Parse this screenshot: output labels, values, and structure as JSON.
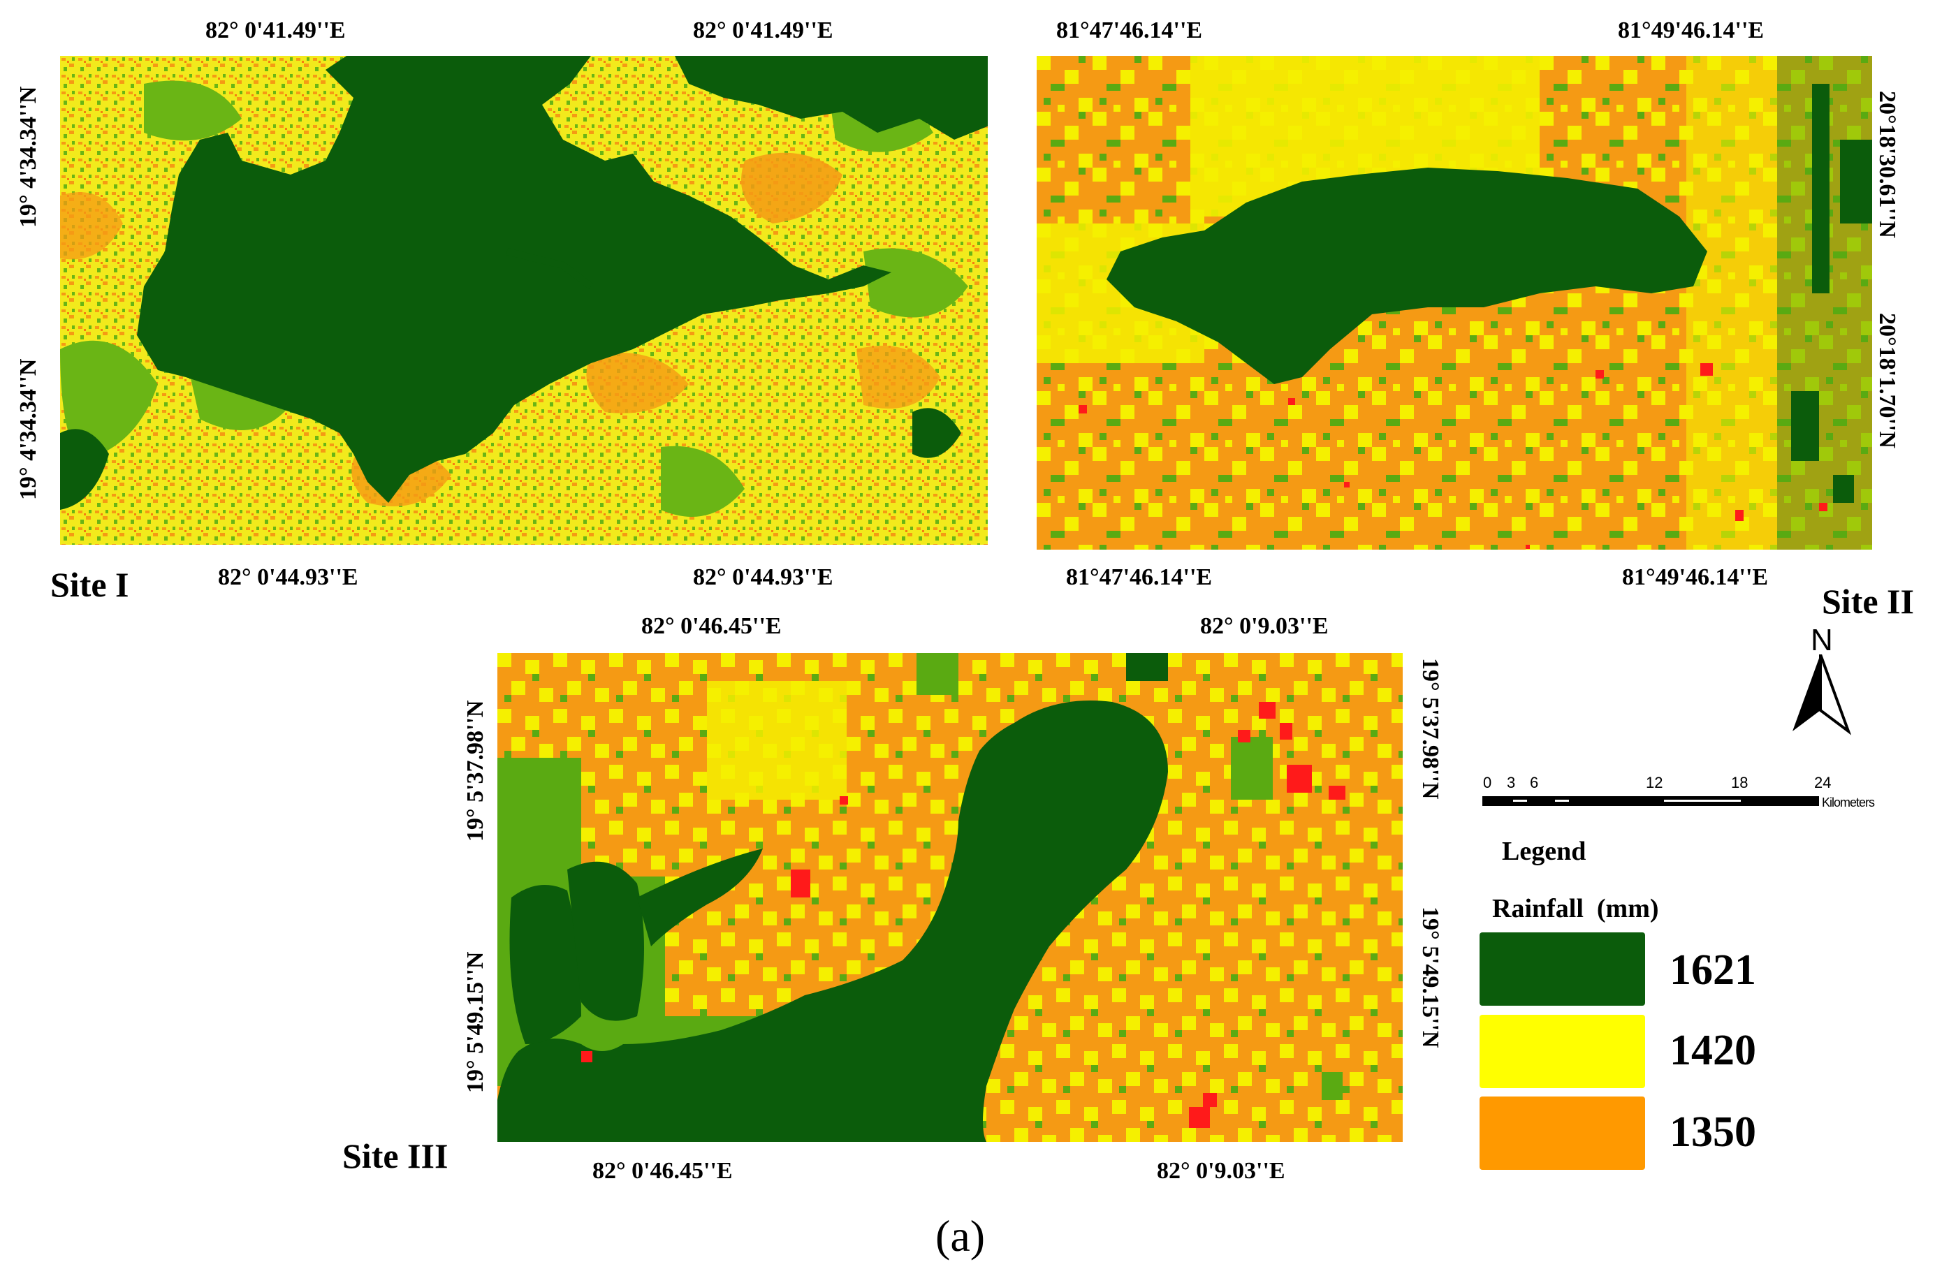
{
  "maps": {
    "site1": {
      "label": "Site I",
      "top_left": "82° 0'41.49''E",
      "top_right": "82° 0'41.49''E",
      "bottom_left": "82° 0'44.93''E",
      "bottom_right": "82° 0'44.93''E",
      "left_top": "19° 4'34.34''N",
      "left_bottom": "19° 4'34.34''N"
    },
    "site2": {
      "label": "Site II",
      "top_left": "81°47'46.14''E",
      "top_right": "81°49'46.14''E",
      "bottom_left": "81°47'46.14''E",
      "bottom_right": "81°49'46.14''E",
      "right_top": "20°18'30.61''N",
      "right_bottom": "20°18'1.70''N"
    },
    "site3": {
      "label": "Site III",
      "top_left": "82° 0'46.45''E",
      "top_right": "82° 0'9.03''E",
      "bottom_left": "82° 0'46.45''E",
      "bottom_right": "82° 0'9.03''E",
      "left_top": "19° 5'37.98''N",
      "left_bottom": "19° 5'49.15''N",
      "right_top": "19° 5'37.98''N",
      "right_bottom": "19° 5'49.15''N"
    }
  },
  "north_arrow": {
    "letter": "N",
    "icon": "north-arrow-icon"
  },
  "scale_bar": {
    "ticks": [
      "0",
      "3",
      "6",
      "12",
      "18",
      "24"
    ],
    "unit": "Kilometers"
  },
  "legend": {
    "title": "Legend",
    "subtitle": "Rainfall  (mm)",
    "classes": [
      {
        "value": "1621",
        "color": "#0b5c0b"
      },
      {
        "value": "1420",
        "color": "#ffff00"
      },
      {
        "value": "1350",
        "color": "#ff9900"
      }
    ]
  },
  "colors": {
    "dark_green": "#0b5c0b",
    "light_green": "#5aaa12",
    "yellow": "#f5f000",
    "orange": "#f59a14",
    "red": "#ff1a1a"
  },
  "caption": "(a)"
}
